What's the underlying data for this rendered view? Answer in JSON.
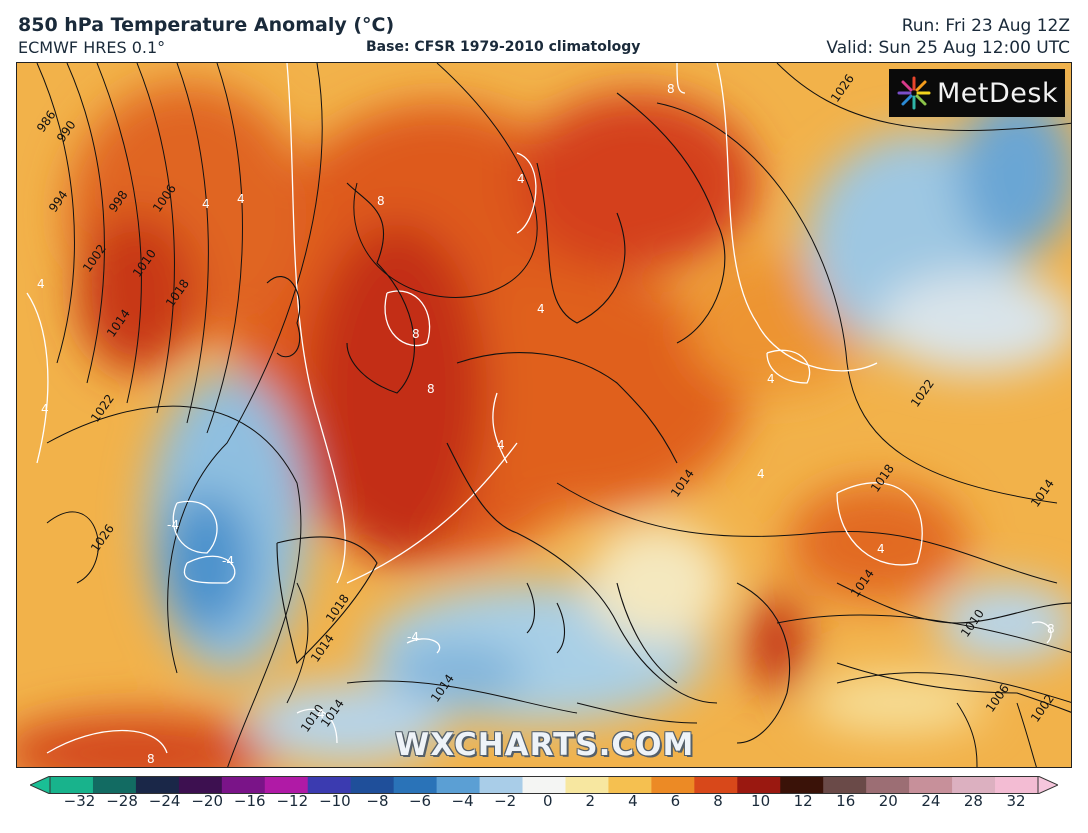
{
  "header": {
    "title": "850 hPa Temperature Anomaly (°C)",
    "model": "ECMWF HRES 0.1°",
    "base": "Base: CFSR 1979-2010 climatology",
    "run": "Run: Fri 23 Aug 12Z",
    "valid": "Valid: Sun 25 Aug 12:00 UTC"
  },
  "logo": {
    "text": "MetDesk",
    "icon": "metdesk-sunburst-icon"
  },
  "watermark": "WXCHARTS.COM",
  "isobar_labels": [
    "986",
    "990",
    "994",
    "998",
    "1002",
    "1006",
    "1010",
    "1014",
    "1018",
    "1022",
    "1026",
    "1026",
    "1022",
    "1018",
    "1014",
    "1010",
    "1014",
    "1014",
    "1018",
    "1014",
    "1010",
    "1006",
    "1002",
    "1014",
    "1014"
  ],
  "anomaly_labels": [
    "4",
    "4",
    "4",
    "4",
    "4",
    "4",
    "4",
    "8",
    "8",
    "8",
    "8",
    "8",
    "-4",
    "-4",
    "-4",
    "4",
    "4",
    "4",
    "4",
    "8"
  ],
  "colorbar": {
    "ticks": [
      "−32",
      "−28",
      "−24",
      "−20",
      "−16",
      "−12",
      "−10",
      "−8",
      "−6",
      "−4",
      "−2",
      "0",
      "2",
      "4",
      "6",
      "8",
      "10",
      "12",
      "16",
      "20",
      "24",
      "28",
      "32"
    ],
    "colors": [
      "#18b38c",
      "#126b62",
      "#1a2748",
      "#3d1050",
      "#7a1488",
      "#b01aa6",
      "#3b3bb0",
      "#1f4f9a",
      "#2a73b8",
      "#5b9fd4",
      "#a9cde8",
      "#f4f5f3",
      "#f7e7a0",
      "#f5c050",
      "#ec8a25",
      "#d8481a",
      "#9a1810",
      "#3a1208",
      "#6a4a48",
      "#9c6e74",
      "#c7909a",
      "#dcb0c0",
      "#f3bcd3"
    ],
    "accent_left": "#1abf95",
    "accent_right": "#f6c6dc"
  }
}
